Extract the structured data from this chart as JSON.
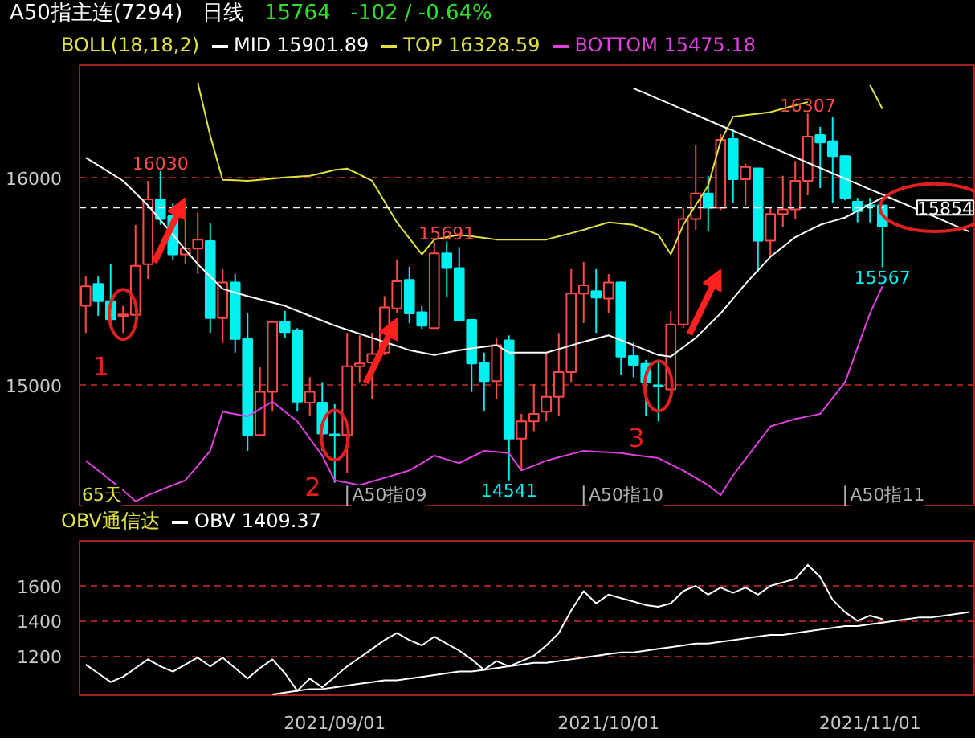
{
  "chart_data": [
    {
      "type": "candlestick",
      "title": "A50指主连(7294)",
      "subtitle": "日线",
      "legend_title": "BOLL(18,18,2)",
      "legend": "top left",
      "categories": [
        null,
        null,
        null,
        null,
        null,
        null,
        null,
        null,
        null,
        null,
        null,
        null,
        null,
        null,
        null,
        null,
        null,
        null,
        null,
        null,
        null,
        null,
        null,
        null,
        null,
        null,
        null,
        null,
        null,
        null,
        null,
        null,
        null,
        null,
        null,
        null,
        null,
        null,
        null,
        null,
        null,
        null,
        null,
        null,
        null,
        null,
        null,
        null,
        null,
        null,
        null,
        null,
        null,
        null,
        null,
        null,
        null,
        null,
        null,
        null,
        null,
        null,
        null,
        null,
        null,
        null,
        null,
        null,
        null,
        null,
        null,
        null
      ],
      "ohlc": [
        [
          15381,
          15522,
          15251,
          15475
        ],
        [
          15487,
          15522,
          15333,
          15404
        ],
        [
          15404,
          15582,
          15298,
          15317
        ],
        [
          15333,
          15381,
          15251,
          15340
        ],
        [
          15338,
          15771,
          15333,
          15574
        ],
        [
          15582,
          15983,
          15511,
          15894
        ],
        [
          15894,
          16030,
          15771,
          15799
        ],
        [
          15813,
          15877,
          15600,
          15629
        ],
        [
          15629,
          15818,
          15582,
          15657
        ],
        [
          15657,
          15830,
          15534,
          15700
        ],
        [
          15693,
          15782,
          15251,
          15322
        ],
        [
          15322,
          15558,
          15203,
          15494
        ],
        [
          15494,
          15534,
          15156,
          15222
        ],
        [
          15222,
          15345,
          14683,
          14759
        ],
        [
          14759,
          15085,
          14759,
          14967
        ],
        [
          14967,
          15310,
          14872,
          15303
        ],
        [
          15305,
          15357,
          15227,
          15255
        ],
        [
          15262,
          15274,
          14872,
          14920
        ],
        [
          14915,
          15038,
          14849,
          14967
        ],
        [
          14915,
          15014,
          14683,
          14766
        ],
        [
          14762,
          14908,
          14530,
          14759
        ],
        [
          14759,
          15251,
          14577,
          15090
        ],
        [
          15090,
          15239,
          15014,
          15104
        ],
        [
          15109,
          15251,
          14931,
          15149
        ],
        [
          15156,
          15428,
          15144,
          15374
        ],
        [
          15369,
          15605,
          15345,
          15499
        ],
        [
          15506,
          15570,
          15298,
          15345
        ],
        [
          15350,
          15380,
          15270,
          15286
        ],
        [
          15274,
          15688,
          15274,
          15634
        ],
        [
          15634,
          15691,
          15421,
          15563
        ],
        [
          15563,
          15664,
          15310,
          15310
        ],
        [
          15314,
          15314,
          14967,
          15104
        ],
        [
          15109,
          15156,
          14872,
          15019
        ],
        [
          15019,
          15227,
          14931,
          15192
        ],
        [
          15215,
          15239,
          14541,
          14742
        ],
        [
          14742,
          14861,
          14589,
          14825
        ],
        [
          14825,
          15003,
          14778,
          14861
        ],
        [
          14872,
          15156,
          14825,
          14943
        ],
        [
          14943,
          15251,
          14849,
          15062
        ],
        [
          15062,
          15558,
          15014,
          15440
        ],
        [
          15440,
          15593,
          15298,
          15480
        ],
        [
          15452,
          15558,
          15251,
          15421
        ],
        [
          15416,
          15534,
          15345,
          15494
        ],
        [
          15494,
          15499,
          15050,
          15137
        ],
        [
          15140,
          15203,
          15038,
          15097
        ],
        [
          15102,
          15121,
          14849,
          15014
        ],
        [
          14998,
          15109,
          14825,
          14995
        ],
        [
          14979,
          15357,
          14967,
          15291
        ],
        [
          15291,
          15853,
          15274,
          15799
        ],
        [
          15799,
          16154,
          15747,
          15922
        ],
        [
          15922,
          16007,
          15740,
          15853
        ],
        [
          15853,
          16208,
          15842,
          16180
        ],
        [
          16184,
          16232,
          15877,
          15991
        ],
        [
          15991,
          16066,
          15865,
          16050
        ],
        [
          16043,
          16043,
          15546,
          15695
        ],
        [
          15695,
          15853,
          15617,
          15823
        ],
        [
          15823,
          16007,
          15759,
          15846
        ],
        [
          15846,
          16078,
          15799,
          15983
        ],
        [
          15983,
          16307,
          15913,
          16196
        ],
        [
          16203,
          16243,
          15948,
          16168
        ],
        [
          16173,
          16290,
          15877,
          16102
        ],
        [
          16102,
          16106,
          15889,
          15901
        ],
        [
          15882,
          15901,
          15783,
          15837
        ],
        [
          15865,
          15901,
          15783,
          15860
        ],
        [
          15865,
          15865,
          15567,
          15764
        ],
        null,
        null,
        null,
        null,
        null,
        null,
        null
      ],
      "series": [
        {
          "name": "MID 15901.89",
          "type": "line",
          "color": "#ffffff",
          "values": [
            16095,
            16058,
            16020,
            15983,
            15924,
            15865,
            15794,
            15723,
            15652,
            15582,
            15522,
            15463,
            15445,
            15428,
            15412,
            15397,
            15381,
            15357,
            15333,
            15310,
            15286,
            15266,
            15247,
            15227,
            15207,
            15188,
            15168,
            15156,
            15144,
            15156,
            15168,
            15176,
            15184,
            15192,
            15156,
            15156,
            15156,
            15156,
            15173,
            15191,
            15208,
            15224,
            15239,
            15216,
            15192,
            15168,
            15144,
            15137,
            15182,
            15227,
            15286,
            15345,
            15416,
            15487,
            15552,
            15617,
            15665,
            15712,
            15742,
            15771,
            15789,
            15806,
            15838,
            15870,
            15902,
            null,
            null,
            null,
            null,
            null,
            null,
            null
          ]
        },
        {
          "name": "TOP 16328.59",
          "type": "line",
          "color": "#e0e040",
          "values": [
            null,
            null,
            null,
            null,
            null,
            null,
            null,
            null,
            null,
            16456,
            16200,
            15988,
            15986,
            15983,
            15988,
            15994,
            15999,
            16003,
            16007,
            16021,
            16035,
            16042,
            16013,
            15983,
            15883,
            15783,
            15706,
            15629,
            15700,
            15712,
            15723,
            15716,
            15708,
            15700,
            15700,
            15700,
            15700,
            15700,
            15716,
            15731,
            15747,
            15765,
            15783,
            15777,
            15771,
            15747,
            15723,
            15629,
            15771,
            15866,
            15960,
            16173,
            16291,
            16299,
            16306,
            16314,
            16330,
            16346,
            16362,
            null,
            null,
            null,
            null,
            16444,
            16329,
            null,
            null,
            null,
            null,
            null,
            null,
            null
          ]
        },
        {
          "name": "BOTTOM 15475.18",
          "type": "line",
          "color": "#e040e0",
          "values": [
            14636,
            14589,
            14541,
            14494,
            14440,
            14470,
            14494,
            14518,
            14541,
            14612,
            14683,
            14872,
            14860,
            14849,
            14885,
            14920,
            14872,
            14825,
            14742,
            14660,
            14541,
            14530,
            14518,
            14536,
            14553,
            14571,
            14589,
            14624,
            14660,
            14642,
            14624,
            14654,
            14683,
            14678,
            14672,
            14589,
            14612,
            14636,
            14652,
            14668,
            14683,
            14679,
            14676,
            14672,
            14664,
            14656,
            14648,
            14618,
            14589,
            14553,
            14518,
            14470,
            14565,
            14644,
            14722,
            14801,
            14819,
            14837,
            14849,
            14861,
            14938,
            15014,
            15180,
            15345,
            15475,
            null,
            null,
            null,
            null,
            null,
            null,
            null
          ]
        },
        {
          "type": "line",
          "color": "#ffffff",
          "values": [
            null,
            null,
            null,
            null,
            null,
            null,
            null,
            null,
            null,
            null,
            null,
            null,
            null,
            null,
            null,
            null,
            null,
            null,
            null,
            null,
            null,
            null,
            null,
            null,
            null,
            null,
            null,
            null,
            null,
            null,
            null,
            null,
            null,
            null,
            null,
            null,
            null,
            null,
            null,
            null,
            null,
            null,
            null,
            null,
            16428,
            16403,
            16377,
            16352,
            16326,
            16301,
            16275,
            16249,
            16224,
            16198,
            16173,
            16147,
            16122,
            16096,
            16070,
            16045,
            16019,
            15994,
            15968,
            15942,
            15917,
            15891,
            15866,
            15840,
            15815,
            15789,
            15763,
            15738
          ]
        }
      ],
      "ylim": [
        14420,
        16540
      ],
      "yticks": [
        15000,
        16000
      ],
      "tick_labels": "y",
      "grid": "y",
      "ref_lines": [
        {
          "axis": "y",
          "value": 15854,
          "label": "15854",
          "color": "#ffffff",
          "line_style": "dashed"
        }
      ],
      "annotations": [
        "15764",
        "-102 / -0.64%",
        "65天",
        "16030",
        "15691",
        "14541",
        "16307",
        "15567",
        "1",
        "2",
        "3",
        "A50指09",
        "A50指10",
        "A50指11"
      ]
    },
    {
      "type": "line",
      "legend_title": "OBV通信达",
      "legend": "top left",
      "categories": [
        null,
        null,
        null,
        null,
        null,
        null,
        null,
        null,
        null,
        null,
        null,
        null,
        null,
        null,
        null,
        null,
        null,
        null,
        null,
        null,
        "2021/09/01",
        null,
        null,
        null,
        null,
        null,
        null,
        null,
        null,
        null,
        null,
        null,
        null,
        null,
        null,
        null,
        null,
        null,
        null,
        null,
        null,
        null,
        "2021/10/01",
        null,
        null,
        null,
        null,
        null,
        null,
        null,
        null,
        null,
        null,
        null,
        null,
        null,
        null,
        null,
        null,
        null,
        null,
        null,
        null,
        "2021/11/01",
        null,
        null,
        null,
        null,
        null,
        null,
        null,
        null
      ],
      "series": [
        {
          "name": "OBV 1409.37",
          "color": "#ffffff",
          "values": [
            1150,
            1100,
            1050,
            1080,
            1130,
            1180,
            1140,
            1110,
            1150,
            1190,
            1140,
            1190,
            1130,
            1070,
            1130,
            1180,
            1100,
            1000,
            1070,
            1020,
            1080,
            1140,
            1190,
            1240,
            1290,
            1330,
            1290,
            1260,
            1310,
            1270,
            1230,
            1180,
            1120,
            1170,
            1140,
            1170,
            1200,
            1260,
            1330,
            1460,
            1570,
            1500,
            1550,
            1530,
            1510,
            1490,
            1480,
            1500,
            1570,
            1600,
            1550,
            1590,
            1560,
            1590,
            1550,
            1600,
            1620,
            1640,
            1720,
            1650,
            1520,
            1450,
            1400,
            1430,
            1410,
            null,
            null,
            null,
            null,
            null,
            null,
            null
          ]
        },
        {
          "color": "#ffffff",
          "values": [
            null,
            null,
            null,
            null,
            null,
            null,
            null,
            null,
            null,
            null,
            null,
            null,
            null,
            null,
            null,
            980,
            990,
            1000,
            1010,
            1010,
            1020,
            1030,
            1040,
            1050,
            1060,
            1060,
            1070,
            1080,
            1090,
            1100,
            1110,
            1110,
            1120,
            1130,
            1140,
            1150,
            1160,
            1160,
            1170,
            1180,
            1190,
            1200,
            1210,
            1220,
            1220,
            1230,
            1240,
            1250,
            1260,
            1270,
            1270,
            1280,
            1290,
            1300,
            1310,
            1320,
            1320,
            1330,
            1340,
            1350,
            1360,
            1370,
            1370,
            1380,
            1390,
            1400,
            1410,
            1420,
            1420,
            1430,
            1440,
            1450
          ]
        }
      ],
      "ylim": [
        975,
        1857
      ],
      "yticks": [
        1200,
        1400,
        1600
      ],
      "grid": "y"
    }
  ]
}
